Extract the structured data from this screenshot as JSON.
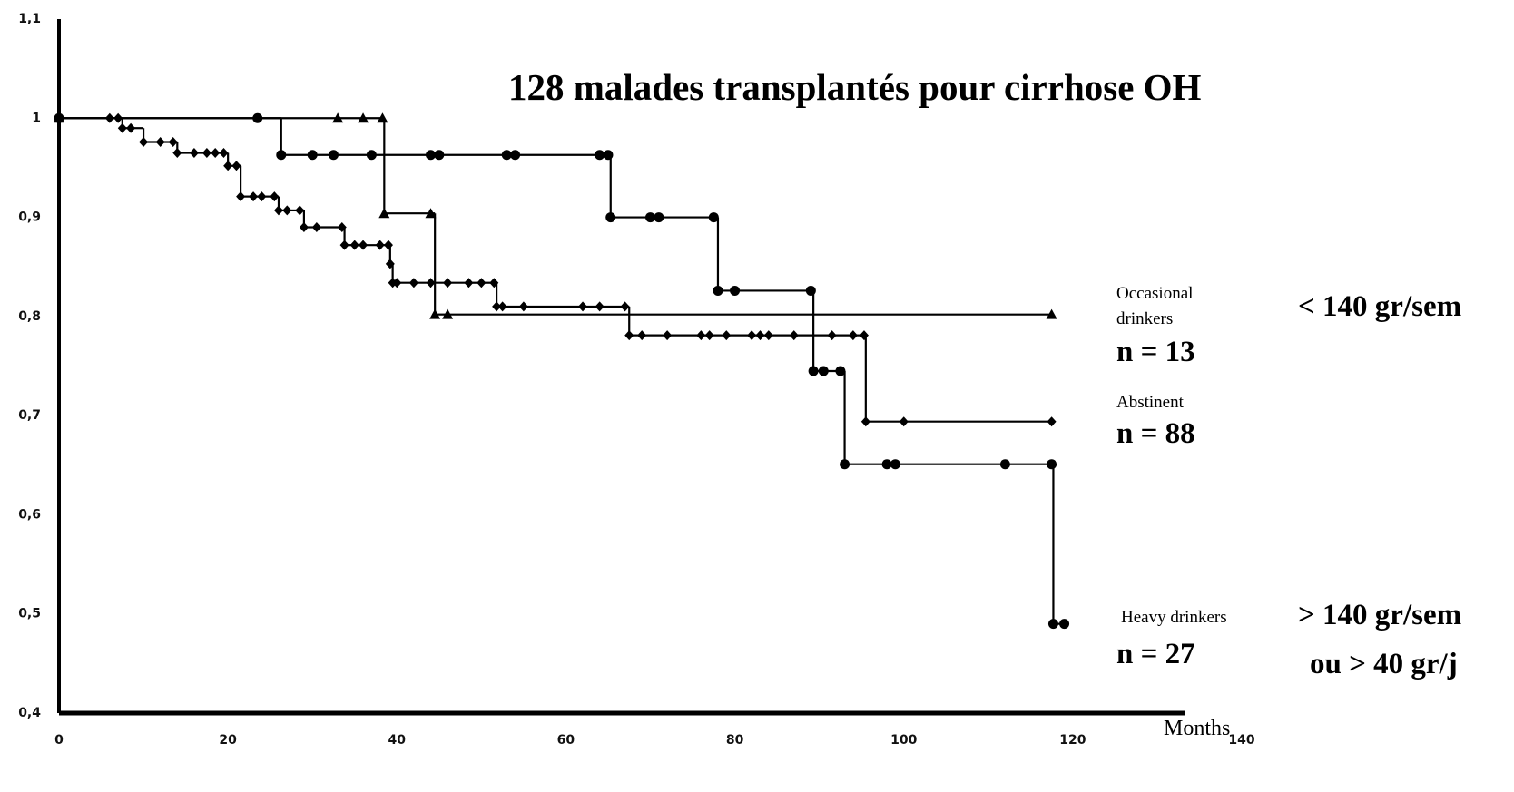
{
  "chart_data": {
    "type": "line",
    "drawstyle": "steps-post",
    "title": "128 malades transplantés pour cirrhose OH",
    "x_label": "Months",
    "xlim": [
      0,
      140
    ],
    "xticks": [
      0,
      20,
      40,
      60,
      80,
      100,
      120,
      140
    ],
    "ylim": [
      0.4,
      1.1
    ],
    "yticks": [
      {
        "value": 0.4,
        "label": "0,4"
      },
      {
        "value": 0.5,
        "label": "0,5"
      },
      {
        "value": 0.6,
        "label": "0,6"
      },
      {
        "value": 0.7,
        "label": "0,7"
      },
      {
        "value": 0.8,
        "label": "0,8"
      },
      {
        "value": 0.9,
        "label": "0,9"
      },
      1,
      {
        "value": 1.1,
        "label": "1,1"
      }
    ],
    "grid": false,
    "series": [
      {
        "name": "Occasional drinkers",
        "n_label": "n = 13",
        "color": "#000000",
        "marker": "triangle",
        "x": [
          0,
          33,
          36,
          38.3,
          38.5,
          44,
          44.5,
          46,
          117.5
        ],
        "values": [
          1,
          1,
          1,
          1,
          0.904,
          0.904,
          0.802,
          0.802,
          0.802
        ]
      },
      {
        "name": "Abstinent",
        "n_label": "n = 88",
        "color": "#000000",
        "marker": "diamond",
        "x": [
          0,
          6,
          7,
          7.5,
          8.5,
          10,
          12,
          13.5,
          14,
          16,
          17.5,
          18.5,
          19.5,
          20,
          21,
          21.5,
          23,
          24,
          25.5,
          26,
          27,
          28.5,
          29,
          30.5,
          33.5,
          33.8,
          35,
          36,
          38,
          39,
          39.2,
          39.5,
          40,
          42,
          44,
          46,
          48.5,
          50,
          51.5,
          51.8,
          52.5,
          55,
          62,
          64,
          67,
          67.5,
          69,
          72,
          76,
          77,
          79,
          82,
          83,
          84,
          87,
          91.5,
          94,
          95.3,
          95.5,
          100,
          117.5
        ],
        "values": [
          1,
          1,
          1,
          0.99,
          0.99,
          0.976,
          0.976,
          0.976,
          0.965,
          0.965,
          0.965,
          0.965,
          0.965,
          0.952,
          0.952,
          0.921,
          0.921,
          0.921,
          0.921,
          0.907,
          0.907,
          0.907,
          0.89,
          0.89,
          0.89,
          0.872,
          0.872,
          0.872,
          0.872,
          0.872,
          0.853,
          0.834,
          0.834,
          0.834,
          0.834,
          0.834,
          0.834,
          0.834,
          0.834,
          0.81,
          0.81,
          0.81,
          0.81,
          0.81,
          0.81,
          0.781,
          0.781,
          0.781,
          0.781,
          0.781,
          0.781,
          0.781,
          0.781,
          0.781,
          0.781,
          0.781,
          0.781,
          0.781,
          0.694,
          0.694,
          0.694
        ]
      },
      {
        "name": "Heavy drinkers",
        "n_label": "n = 27",
        "color": "#000000",
        "marker": "circle",
        "x": [
          0,
          23.5,
          26.3,
          30,
          32.5,
          37,
          44,
          45,
          53,
          54,
          64,
          65,
          65.3,
          70,
          71,
          77.5,
          78,
          80,
          89,
          89.3,
          90.5,
          92.5,
          93,
          98,
          99,
          112,
          117.5,
          117.7,
          119
        ],
        "values": [
          1,
          1,
          0.963,
          0.963,
          0.963,
          0.963,
          0.963,
          0.963,
          0.963,
          0.963,
          0.963,
          0.963,
          0.9,
          0.9,
          0.9,
          0.9,
          0.826,
          0.826,
          0.826,
          0.745,
          0.745,
          0.745,
          0.651,
          0.651,
          0.651,
          0.651,
          0.651,
          0.49,
          0.49
        ]
      }
    ],
    "annotations": [
      "< 140 gr/sem",
      "> 140 gr/sem",
      "ou > 40 gr/j"
    ]
  }
}
